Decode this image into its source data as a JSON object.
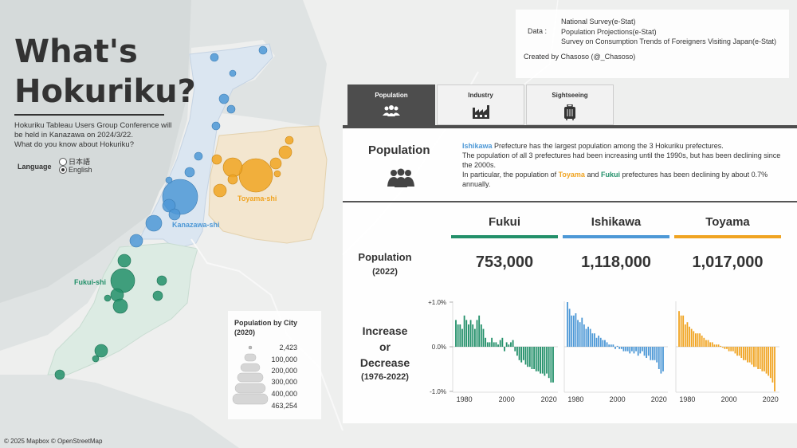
{
  "title_line1": "What's",
  "title_line2": "Hokuriku?",
  "subtitle": {
    "line1": "Hokuriku Tableau Users Group Conference will",
    "line2": "be held in Kanazawa on 2024/3/22.",
    "line3": "What do you know about Hokuriku?"
  },
  "language": {
    "label": "Language",
    "options": [
      "日本語",
      "English"
    ],
    "selected": "English"
  },
  "city_labels": {
    "toyama": "Toyama-shi",
    "kanazawa": "Kanazawa-shi",
    "fukui": "Fukui-shi"
  },
  "data_source": {
    "label": "Data :",
    "sources": [
      "National Survey(e-Stat)",
      "Population Projections(e-Stat)",
      "Survey on Consumption Trends of Foreigners Visiting Japan(e-Stat)"
    ],
    "credit": "Created by Chasoso (@_Chasoso)"
  },
  "legend": {
    "title_line1": "Population by City",
    "title_line2": "(2020)",
    "items": [
      "2,423",
      "100,000",
      "200,000",
      "300,000",
      "400,000",
      "463,254"
    ]
  },
  "tabs": [
    {
      "label": "Population",
      "icon": "people-icon",
      "active": true
    },
    {
      "label": "Industry",
      "icon": "factory-icon",
      "active": false
    },
    {
      "label": "Sightseeing",
      "icon": "luggage-icon",
      "active": false
    }
  ],
  "population_section": {
    "heading": "Population",
    "desc": {
      "p1_hl": "Ishikawa",
      "p1_rest": " Prefecture has the largest population among the 3 Hokuriku prefectures.",
      "p2": "The population of all 3 prefectures had been increasing until the 1990s, but has been declining since the 2000s.",
      "p3_a": "In particular, the population of ",
      "p3_toyama": "Toyama",
      "p3_b": " and ",
      "p3_fukui": "Fukui",
      "p3_c": " prefectures has been declining by about 0.7% annually."
    }
  },
  "prefectures": [
    {
      "name": "Fukui",
      "population": "753,000",
      "color": "#23906a"
    },
    {
      "name": "Ishikawa",
      "population": "1,118,000",
      "color": "#4d98d6"
    },
    {
      "name": "Toyama",
      "population": "1,017,000",
      "color": "#f0a422"
    }
  ],
  "row_labels": {
    "population": "Population",
    "population_year": "(2022)",
    "change_line1": "Increase",
    "change_line2": "or",
    "change_line3": "Decrease",
    "change_years": "(1976-2022)"
  },
  "footer": "© 2025 Mapbox © OpenStreetMap",
  "chart_data": [
    {
      "type": "bar",
      "series": [
        {
          "name": "Fukui",
          "color": "#23906a"
        }
      ],
      "x": [
        1976,
        1977,
        1978,
        1979,
        1980,
        1981,
        1982,
        1983,
        1984,
        1985,
        1986,
        1987,
        1988,
        1989,
        1990,
        1991,
        1992,
        1993,
        1994,
        1995,
        1996,
        1997,
        1998,
        1999,
        2000,
        2001,
        2002,
        2003,
        2004,
        2005,
        2006,
        2007,
        2008,
        2009,
        2010,
        2011,
        2012,
        2013,
        2014,
        2015,
        2016,
        2017,
        2018,
        2019,
        2020,
        2021,
        2022
      ],
      "values": [
        0.6,
        0.5,
        0.5,
        0.4,
        0.7,
        0.6,
        0.5,
        0.6,
        0.5,
        0.4,
        0.6,
        0.7,
        0.5,
        0.4,
        0.2,
        0.1,
        0.1,
        0.2,
        0.1,
        0.1,
        0.05,
        0.15,
        0.2,
        -0.1,
        0.1,
        0.05,
        0.1,
        0.15,
        -0.1,
        -0.2,
        -0.3,
        -0.35,
        -0.3,
        -0.4,
        -0.45,
        -0.45,
        -0.5,
        -0.5,
        -0.55,
        -0.55,
        -0.6,
        -0.6,
        -0.65,
        -0.6,
        -0.7,
        -0.8,
        -0.8
      ],
      "ylim": [
        -1.0,
        1.0
      ],
      "yticks": [
        "+1.0%",
        "0.0%",
        "-1.0%"
      ],
      "xticks": [
        "1980",
        "2000",
        "2020"
      ]
    },
    {
      "type": "bar",
      "series": [
        {
          "name": "Ishikawa",
          "color": "#4d98d6"
        }
      ],
      "x": [
        1976,
        1977,
        1978,
        1979,
        1980,
        1981,
        1982,
        1983,
        1984,
        1985,
        1986,
        1987,
        1988,
        1989,
        1990,
        1991,
        1992,
        1993,
        1994,
        1995,
        1996,
        1997,
        1998,
        1999,
        2000,
        2001,
        2002,
        2003,
        2004,
        2005,
        2006,
        2007,
        2008,
        2009,
        2010,
        2011,
        2012,
        2013,
        2014,
        2015,
        2016,
        2017,
        2018,
        2019,
        2020,
        2021,
        2022
      ],
      "values": [
        1.0,
        0.85,
        0.7,
        0.7,
        0.75,
        0.6,
        0.55,
        0.65,
        0.5,
        0.4,
        0.45,
        0.4,
        0.3,
        0.3,
        0.2,
        0.25,
        0.2,
        0.15,
        0.15,
        0.1,
        0.05,
        0.05,
        0.05,
        -0.05,
        0.02,
        -0.05,
        -0.05,
        -0.1,
        -0.1,
        -0.1,
        -0.15,
        -0.1,
        -0.15,
        -0.1,
        -0.2,
        -0.15,
        -0.1,
        -0.2,
        -0.25,
        -0.2,
        -0.3,
        -0.3,
        -0.3,
        -0.35,
        -0.5,
        -0.6,
        -0.55
      ],
      "ylim": [
        -1.0,
        1.0
      ],
      "yticks": [
        "+1.0%",
        "0.0%",
        "-1.0%"
      ],
      "xticks": [
        "1980",
        "2000",
        "2020"
      ]
    },
    {
      "type": "bar",
      "series": [
        {
          "name": "Toyama",
          "color": "#f0a422"
        }
      ],
      "x": [
        1976,
        1977,
        1978,
        1979,
        1980,
        1981,
        1982,
        1983,
        1984,
        1985,
        1986,
        1987,
        1988,
        1989,
        1990,
        1991,
        1992,
        1993,
        1994,
        1995,
        1996,
        1997,
        1998,
        1999,
        2000,
        2001,
        2002,
        2003,
        2004,
        2005,
        2006,
        2007,
        2008,
        2009,
        2010,
        2011,
        2012,
        2013,
        2014,
        2015,
        2016,
        2017,
        2018,
        2019,
        2020,
        2021,
        2022
      ],
      "values": [
        0.8,
        0.7,
        0.7,
        0.5,
        0.55,
        0.45,
        0.4,
        0.35,
        0.3,
        0.3,
        0.3,
        0.25,
        0.2,
        0.15,
        0.15,
        0.1,
        0.1,
        0.05,
        0.05,
        0.05,
        0.02,
        -0.02,
        -0.05,
        -0.05,
        -0.1,
        -0.1,
        -0.1,
        -0.15,
        -0.2,
        -0.2,
        -0.25,
        -0.3,
        -0.3,
        -0.35,
        -0.35,
        -0.4,
        -0.45,
        -0.45,
        -0.5,
        -0.5,
        -0.55,
        -0.55,
        -0.6,
        -0.65,
        -0.7,
        -0.8,
        -1.0
      ],
      "ylim": [
        -1.0,
        1.0
      ],
      "yticks": [
        "+1.0%",
        "0.0%",
        "-1.0%"
      ],
      "xticks": [
        "1980",
        "2000",
        "2020"
      ]
    }
  ]
}
